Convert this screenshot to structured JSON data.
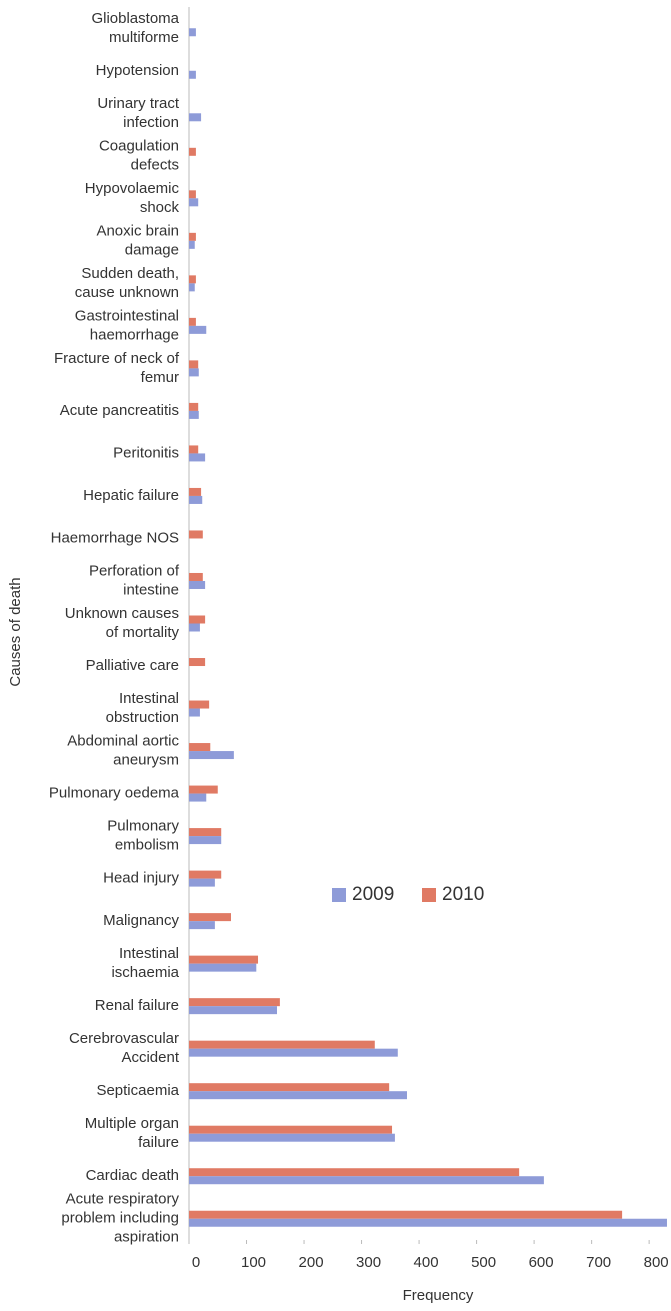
{
  "chart_data": {
    "type": "bar",
    "orientation": "horizontal",
    "categories": [
      "Glioblastoma\nmultiforme",
      "Hypotension",
      "Urinary tract\ninfection",
      "Coagulation\ndefects",
      "Hypovolaemic\nshock",
      "Anoxic brain\ndamage",
      "Sudden death,\ncause unknown",
      "Gastrointestinal\nhaemorrhage",
      "Fracture of neck of\nfemur",
      "Acute pancreatitis",
      "Peritonitis",
      "Hepatic failure",
      "Haemorrhage NOS",
      "Perforation of\nintestine",
      "Unknown causes\nof mortality",
      "Palliative care",
      "Intestinal\nobstruction",
      "Abdominal aortic\naneurysm",
      "Pulmonary oedema",
      "Pulmonary\nembolism",
      "Head injury",
      "Malignancy",
      "Intestinal\nischaemia",
      "Renal failure",
      "Cerebrovascular\nAccident",
      "Septicaemia",
      "Multiple organ\nfailure",
      "Cardiac death",
      "Acute respiratory\nproblem including\naspiration"
    ],
    "series": [
      {
        "name": "2009",
        "color": "#8e9bd8",
        "values": [
          12,
          12,
          21,
          0,
          16,
          10,
          10,
          30,
          17,
          17,
          28,
          23,
          0,
          28,
          19,
          0,
          19,
          78,
          30,
          56,
          45,
          45,
          117,
          153,
          363,
          379,
          358,
          617,
          831
        ]
      },
      {
        "name": "2010",
        "color": "#e07a64",
        "values": [
          0,
          0,
          0,
          12,
          12,
          12,
          12,
          12,
          16,
          16,
          16,
          21,
          24,
          24,
          28,
          28,
          35,
          37,
          50,
          56,
          56,
          73,
          120,
          158,
          323,
          348,
          353,
          574,
          753
        ]
      }
    ],
    "xlim": [
      0,
      838
    ],
    "xticks": [
      0,
      100,
      200,
      300,
      400,
      500,
      600,
      700,
      800
    ],
    "xlabel": "Frequency",
    "ylabel": "Causes of death",
    "legend": "center-right"
  }
}
